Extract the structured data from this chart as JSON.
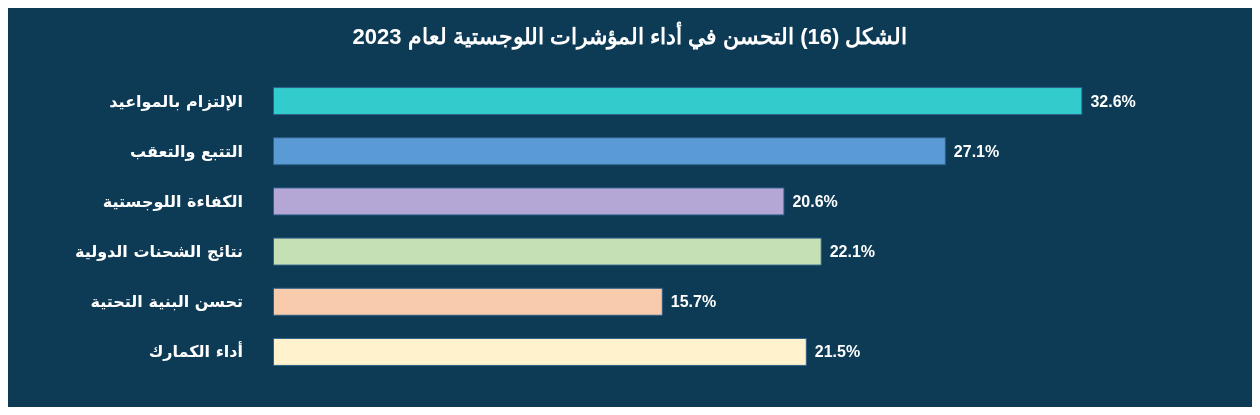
{
  "chart_data": {
    "type": "bar",
    "orientation": "horizontal",
    "title": "الشكل (16) التحسن في أداء المؤشرات اللوجستية لعام 2023",
    "categories": [
      "الإلتزام بالمواعيد",
      "التتبع والتعقب",
      "الكفاءة اللوجستية",
      "نتائج الشحنات الدولية",
      "تحسن البنية التحتية",
      "أداء الكمارك"
    ],
    "values": [
      32.6,
      27.1,
      20.6,
      22.1,
      15.7,
      21.5
    ],
    "value_labels": [
      "32.6%",
      "27.1%",
      "20.6%",
      "22.1%",
      "15.7%",
      "21.5%"
    ],
    "colors": [
      "#33cccc",
      "#5b9bd5",
      "#b4a7d6",
      "#c5e0b4",
      "#f8cbad",
      "#fff2cc"
    ],
    "grid": false
  }
}
